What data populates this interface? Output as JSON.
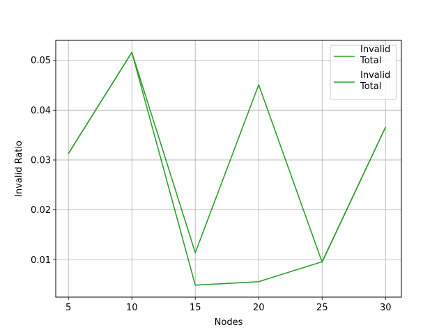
{
  "chart_data": {
    "type": "line",
    "title": "",
    "xlabel": "Nodes",
    "ylabel": "Invalid Ratio",
    "x": [
      5,
      10,
      15,
      20,
      25,
      30
    ],
    "xlim": [
      4,
      31.25
    ],
    "ylim": [
      0.0025,
      0.054
    ],
    "xticks": [
      5,
      10,
      15,
      20,
      25,
      30
    ],
    "yticks": [
      0.01,
      0.02,
      0.03,
      0.04,
      0.05
    ],
    "ytick_labels": [
      "0.01",
      "0.02",
      "0.03",
      "0.04",
      "0.05"
    ],
    "grid": true,
    "legend_position": "top-right",
    "legend_entries": [
      "Invalid\nTotal",
      "Invalid\nTotal"
    ],
    "series": [
      {
        "color": "#2ca02c",
        "values": [
          0.0313,
          0.0516,
          0.0049,
          0.0056,
          0.0096,
          0.0366
        ]
      },
      {
        "color": "#2ca02c",
        "values": [
          0.0313,
          0.0516,
          0.0114,
          0.0451,
          0.0095,
          0.0366
        ]
      }
    ]
  }
}
